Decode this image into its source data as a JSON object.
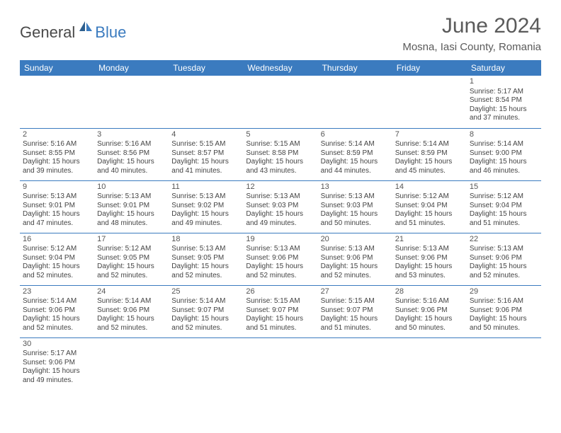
{
  "logo": {
    "part1": "General",
    "part2": "Blue"
  },
  "title": "June 2024",
  "location": "Mosna, Iasi County, Romania",
  "colors": {
    "header_bg": "#3b7bbf",
    "header_text": "#ffffff",
    "cell_border": "#3b7bbf",
    "body_text": "#444444",
    "title_text": "#5a5a5a"
  },
  "day_headers": [
    "Sunday",
    "Monday",
    "Tuesday",
    "Wednesday",
    "Thursday",
    "Friday",
    "Saturday"
  ],
  "weeks": [
    [
      null,
      null,
      null,
      null,
      null,
      null,
      {
        "n": "1",
        "sr": "5:17 AM",
        "ss": "8:54 PM",
        "dl": "15 hours and 37 minutes."
      }
    ],
    [
      {
        "n": "2",
        "sr": "5:16 AM",
        "ss": "8:55 PM",
        "dl": "15 hours and 39 minutes."
      },
      {
        "n": "3",
        "sr": "5:16 AM",
        "ss": "8:56 PM",
        "dl": "15 hours and 40 minutes."
      },
      {
        "n": "4",
        "sr": "5:15 AM",
        "ss": "8:57 PM",
        "dl": "15 hours and 41 minutes."
      },
      {
        "n": "5",
        "sr": "5:15 AM",
        "ss": "8:58 PM",
        "dl": "15 hours and 43 minutes."
      },
      {
        "n": "6",
        "sr": "5:14 AM",
        "ss": "8:59 PM",
        "dl": "15 hours and 44 minutes."
      },
      {
        "n": "7",
        "sr": "5:14 AM",
        "ss": "8:59 PM",
        "dl": "15 hours and 45 minutes."
      },
      {
        "n": "8",
        "sr": "5:14 AM",
        "ss": "9:00 PM",
        "dl": "15 hours and 46 minutes."
      }
    ],
    [
      {
        "n": "9",
        "sr": "5:13 AM",
        "ss": "9:01 PM",
        "dl": "15 hours and 47 minutes."
      },
      {
        "n": "10",
        "sr": "5:13 AM",
        "ss": "9:01 PM",
        "dl": "15 hours and 48 minutes."
      },
      {
        "n": "11",
        "sr": "5:13 AM",
        "ss": "9:02 PM",
        "dl": "15 hours and 49 minutes."
      },
      {
        "n": "12",
        "sr": "5:13 AM",
        "ss": "9:03 PM",
        "dl": "15 hours and 49 minutes."
      },
      {
        "n": "13",
        "sr": "5:13 AM",
        "ss": "9:03 PM",
        "dl": "15 hours and 50 minutes."
      },
      {
        "n": "14",
        "sr": "5:12 AM",
        "ss": "9:04 PM",
        "dl": "15 hours and 51 minutes."
      },
      {
        "n": "15",
        "sr": "5:12 AM",
        "ss": "9:04 PM",
        "dl": "15 hours and 51 minutes."
      }
    ],
    [
      {
        "n": "16",
        "sr": "5:12 AM",
        "ss": "9:04 PM",
        "dl": "15 hours and 52 minutes."
      },
      {
        "n": "17",
        "sr": "5:12 AM",
        "ss": "9:05 PM",
        "dl": "15 hours and 52 minutes."
      },
      {
        "n": "18",
        "sr": "5:13 AM",
        "ss": "9:05 PM",
        "dl": "15 hours and 52 minutes."
      },
      {
        "n": "19",
        "sr": "5:13 AM",
        "ss": "9:06 PM",
        "dl": "15 hours and 52 minutes."
      },
      {
        "n": "20",
        "sr": "5:13 AM",
        "ss": "9:06 PM",
        "dl": "15 hours and 52 minutes."
      },
      {
        "n": "21",
        "sr": "5:13 AM",
        "ss": "9:06 PM",
        "dl": "15 hours and 53 minutes."
      },
      {
        "n": "22",
        "sr": "5:13 AM",
        "ss": "9:06 PM",
        "dl": "15 hours and 52 minutes."
      }
    ],
    [
      {
        "n": "23",
        "sr": "5:14 AM",
        "ss": "9:06 PM",
        "dl": "15 hours and 52 minutes."
      },
      {
        "n": "24",
        "sr": "5:14 AM",
        "ss": "9:06 PM",
        "dl": "15 hours and 52 minutes."
      },
      {
        "n": "25",
        "sr": "5:14 AM",
        "ss": "9:07 PM",
        "dl": "15 hours and 52 minutes."
      },
      {
        "n": "26",
        "sr": "5:15 AM",
        "ss": "9:07 PM",
        "dl": "15 hours and 51 minutes."
      },
      {
        "n": "27",
        "sr": "5:15 AM",
        "ss": "9:07 PM",
        "dl": "15 hours and 51 minutes."
      },
      {
        "n": "28",
        "sr": "5:16 AM",
        "ss": "9:06 PM",
        "dl": "15 hours and 50 minutes."
      },
      {
        "n": "29",
        "sr": "5:16 AM",
        "ss": "9:06 PM",
        "dl": "15 hours and 50 minutes."
      }
    ],
    [
      {
        "n": "30",
        "sr": "5:17 AM",
        "ss": "9:06 PM",
        "dl": "15 hours and 49 minutes."
      },
      null,
      null,
      null,
      null,
      null,
      null
    ]
  ],
  "labels": {
    "sunrise": "Sunrise:",
    "sunset": "Sunset:",
    "daylight": "Daylight:"
  }
}
